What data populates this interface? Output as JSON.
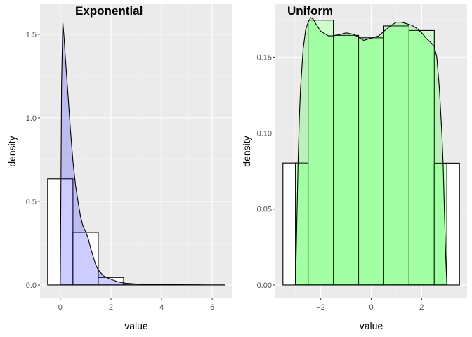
{
  "chart_data": [
    {
      "type": "bar",
      "title": "Exponential",
      "xlabel": "value",
      "ylabel": "density",
      "xlim": [
        -0.8,
        6.8
      ],
      "ylim": [
        -0.08,
        1.68
      ],
      "x_ticks": [
        0,
        2,
        4,
        6
      ],
      "x_minor": [
        1,
        3,
        5
      ],
      "y_ticks": [
        0.0,
        0.5,
        1.0,
        1.5
      ],
      "y_tick_labels": [
        "0.0",
        "0.5",
        "1.0",
        "1.5"
      ],
      "y_minor": [
        0.25,
        0.75,
        1.25
      ],
      "histogram": {
        "bin_edges": [
          -0.5,
          0.5,
          1.5,
          2.5,
          3.5,
          4.5,
          5.5,
          6.5
        ],
        "bar_fill": [
          "#ffffff",
          "#ffffff",
          "#ffffff",
          "#ffffff",
          "#ffffff",
          "#ffffff",
          "#ffffff"
        ],
        "values": [
          0.635,
          0.315,
          0.045,
          0.006,
          0.002,
          0.0005,
          0.0002
        ]
      },
      "density": {
        "fill": "#0000ff",
        "fill_opacity": 0.2,
        "x": [
          0.0,
          0.05,
          0.1,
          0.15,
          0.2,
          0.3,
          0.4,
          0.5,
          0.6,
          0.7,
          0.8,
          0.9,
          1.0,
          1.1,
          1.2,
          1.3,
          1.4,
          1.5,
          1.7,
          1.9,
          2.1,
          2.3,
          2.6,
          3.0,
          3.5,
          4.0,
          4.5,
          5.0,
          5.65
        ],
        "y": [
          0.0,
          1.2,
          1.57,
          1.48,
          1.36,
          1.15,
          0.93,
          0.74,
          0.6,
          0.5,
          0.41,
          0.35,
          0.32,
          0.28,
          0.22,
          0.17,
          0.12,
          0.09,
          0.055,
          0.04,
          0.028,
          0.018,
          0.01,
          0.006,
          0.004,
          0.003,
          0.002,
          0.001,
          0.0
        ]
      },
      "dens_baseline_x": [
        0.0,
        6.5
      ]
    },
    {
      "type": "bar",
      "title": "Uniform",
      "xlabel": "value",
      "ylabel": "density",
      "xlim": [
        -3.8,
        3.8
      ],
      "ylim": [
        -0.0088,
        0.1848
      ],
      "x_ticks": [
        -2,
        0,
        2
      ],
      "x_minor": [
        -3,
        -1,
        1,
        3
      ],
      "y_ticks": [
        0.0,
        0.05,
        0.1,
        0.15
      ],
      "y_tick_labels": [
        "0.00",
        "0.05",
        "0.10",
        "0.15"
      ],
      "y_minor": [
        0.025,
        0.075,
        0.125,
        0.175
      ],
      "histogram": {
        "bin_edges": [
          -3.5,
          -3.0,
          -2.5,
          -1.5,
          -0.5,
          0.5,
          1.5,
          2.5,
          3.0,
          3.5
        ],
        "bar_fill": [
          "#ffffff",
          "#ccffcc",
          "#ccffcc",
          "#ccffcc",
          "#ccffcc",
          "#ccffcc",
          "#ccffcc",
          "#ccffcc",
          "#ffffff"
        ],
        "values": [
          0.0803,
          0.0803,
          0.1743,
          0.1643,
          0.1627,
          0.1705,
          0.1675,
          0.0802,
          0.0802
        ]
      },
      "density": {
        "fill": "#00ff00",
        "fill_opacity": 0.2,
        "x": [
          -3.0,
          -2.95,
          -2.9,
          -2.85,
          -2.8,
          -2.7,
          -2.6,
          -2.5,
          -2.4,
          -2.3,
          -2.2,
          -2.0,
          -1.7,
          -1.5,
          -1.2,
          -1.0,
          -0.7,
          -0.5,
          -0.3,
          -0.1,
          0.1,
          0.3,
          0.5,
          0.8,
          1.0,
          1.2,
          1.4,
          1.6,
          1.8,
          2.0,
          2.2,
          2.4,
          2.5,
          2.6,
          2.7,
          2.8,
          2.85,
          2.9,
          2.95,
          3.0
        ],
        "y": [
          0.0,
          0.04,
          0.08,
          0.11,
          0.13,
          0.155,
          0.168,
          0.173,
          0.176,
          0.175,
          0.172,
          0.167,
          0.164,
          0.164,
          0.165,
          0.166,
          0.165,
          0.163,
          0.161,
          0.162,
          0.163,
          0.164,
          0.167,
          0.171,
          0.173,
          0.173,
          0.172,
          0.171,
          0.169,
          0.166,
          0.162,
          0.159,
          0.157,
          0.15,
          0.13,
          0.1,
          0.08,
          0.05,
          0.02,
          0.0
        ]
      },
      "dens_baseline_x": [
        -3.0,
        3.0
      ]
    }
  ]
}
